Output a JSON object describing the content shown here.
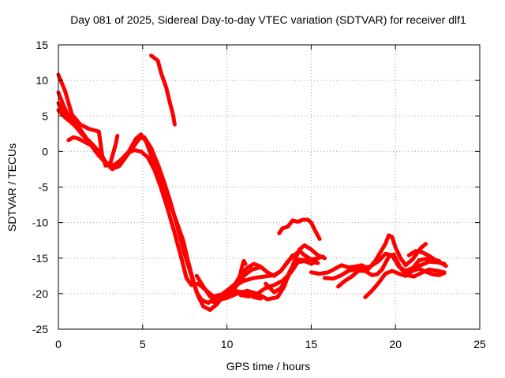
{
  "chart_data": {
    "type": "line",
    "title": "Day 081 of 2025, Sidereal Day-to-day VTEC variation (SDTVAR) for receiver dlf1",
    "xlabel": "GPS time / hours",
    "ylabel": "SDTVAR / TECUs",
    "xlim": [
      0,
      25
    ],
    "ylim": [
      -25,
      15
    ],
    "xticks": [
      0,
      5,
      10,
      15,
      20,
      25
    ],
    "yticks": [
      -25,
      -20,
      -15,
      -10,
      -5,
      0,
      5,
      10,
      15
    ],
    "xtick_labels": [
      "0",
      "5",
      "10",
      "15",
      "20",
      "25"
    ],
    "ytick_labels": [
      "-25",
      "-20",
      "-15",
      "-10",
      "-5",
      "0",
      "5",
      "10",
      "15"
    ],
    "grid": true,
    "color": "#ff0000",
    "series": [
      {
        "name": "track-1",
        "points": [
          [
            0.0,
            10.8
          ],
          [
            0.4,
            8.5
          ],
          [
            0.8,
            5.2
          ],
          [
            1.3,
            3.8
          ],
          [
            1.8,
            3.2
          ],
          [
            2.4,
            2.8
          ],
          [
            2.6,
            -0.5
          ],
          [
            2.8,
            -2.0
          ],
          [
            3.1,
            -1.5
          ],
          [
            3.4,
            1.0
          ],
          [
            3.5,
            2.2
          ]
        ]
      },
      {
        "name": "track-2",
        "points": [
          [
            0.0,
            8.3
          ],
          [
            0.3,
            6.5
          ],
          [
            0.6,
            5.0
          ],
          [
            1.0,
            3.6
          ],
          [
            1.4,
            2.4
          ],
          [
            1.9,
            1.3
          ],
          [
            2.4,
            0.0
          ],
          [
            2.9,
            -1.8
          ],
          [
            3.2,
            -2.5
          ],
          [
            3.6,
            -1.6
          ],
          [
            4.1,
            -0.3
          ],
          [
            4.6,
            1.8
          ],
          [
            4.9,
            2.4
          ],
          [
            5.2,
            1.4
          ],
          [
            5.5,
            -0.5
          ],
          [
            5.8,
            -2.5
          ],
          [
            6.2,
            -4.8
          ],
          [
            6.6,
            -7.2
          ],
          [
            7.0,
            -9.8
          ],
          [
            7.4,
            -12.5
          ],
          [
            7.7,
            -15.5
          ],
          [
            8.0,
            -18.2
          ],
          [
            8.3,
            -20.4
          ],
          [
            8.6,
            -21.8
          ],
          [
            9.0,
            -22.3
          ],
          [
            9.4,
            -21.5
          ],
          [
            9.8,
            -20.3
          ],
          [
            10.2,
            -19.5
          ],
          [
            10.6,
            -18.8
          ],
          [
            11.0,
            -17.5
          ],
          [
            11.5,
            -16.6
          ],
          [
            12.0,
            -16.3
          ]
        ]
      },
      {
        "name": "track-3",
        "points": [
          [
            0.0,
            6.8
          ],
          [
            0.3,
            5.6
          ],
          [
            0.8,
            4.4
          ],
          [
            1.3,
            3.1
          ],
          [
            1.8,
            1.4
          ],
          [
            2.3,
            -0.2
          ],
          [
            2.8,
            -1.6
          ],
          [
            3.2,
            -2.4
          ],
          [
            3.6,
            -2.1
          ],
          [
            4.0,
            -0.8
          ],
          [
            4.4,
            0.5
          ],
          [
            4.8,
            1.8
          ],
          [
            5.1,
            2.0
          ],
          [
            5.5,
            0.5
          ],
          [
            5.9,
            -1.8
          ],
          [
            6.3,
            -4.5
          ],
          [
            6.7,
            -7.5
          ],
          [
            7.1,
            -11.0
          ],
          [
            7.5,
            -14.5
          ],
          [
            7.9,
            -17.5
          ],
          [
            8.2,
            -19.8
          ],
          [
            8.5,
            -20.9
          ],
          [
            8.9,
            -21.3
          ],
          [
            9.3,
            -20.6
          ],
          [
            9.8,
            -20.0
          ],
          [
            10.4,
            -19.6
          ],
          [
            11.0,
            -19.8
          ],
          [
            11.6,
            -20.5
          ],
          [
            12.0,
            -20.7
          ]
        ]
      },
      {
        "name": "track-4",
        "points": [
          [
            0.0,
            5.8
          ],
          [
            0.4,
            4.8
          ],
          [
            0.9,
            3.8
          ],
          [
            1.4,
            2.6
          ],
          [
            1.9,
            1.0
          ],
          [
            2.4,
            -0.6
          ],
          [
            2.9,
            -1.8
          ],
          [
            3.3,
            -1.9
          ],
          [
            3.7,
            -1.2
          ],
          [
            4.1,
            -0.2
          ],
          [
            4.5,
            0.2
          ],
          [
            4.9,
            0.0
          ],
          [
            5.3,
            -0.8
          ],
          [
            5.7,
            -2.6
          ],
          [
            6.1,
            -5.2
          ],
          [
            6.5,
            -8.2
          ],
          [
            6.9,
            -11.5
          ],
          [
            7.3,
            -15.0
          ],
          [
            7.6,
            -17.8
          ],
          [
            7.9,
            -18.8
          ],
          [
            8.3,
            -18.6
          ],
          [
            8.7,
            -19.4
          ],
          [
            9.2,
            -20.4
          ],
          [
            9.7,
            -20.1
          ],
          [
            10.2,
            -19.2
          ],
          [
            10.6,
            -18.4
          ],
          [
            11.0,
            -18.0
          ]
        ]
      },
      {
        "name": "track-5",
        "points": [
          [
            0.6,
            1.6
          ],
          [
            0.9,
            2.0
          ],
          [
            1.2,
            1.8
          ],
          [
            1.6,
            1.3
          ],
          [
            2.0,
            0.8
          ]
        ]
      },
      {
        "name": "track-6",
        "points": [
          [
            5.5,
            13.5
          ],
          [
            5.9,
            12.8
          ],
          [
            6.1,
            11.0
          ],
          [
            6.4,
            9.0
          ],
          [
            6.6,
            7.0
          ],
          [
            6.8,
            5.2
          ],
          [
            6.9,
            3.8
          ]
        ]
      },
      {
        "name": "track-7",
        "points": [
          [
            8.2,
            -17.5
          ],
          [
            8.6,
            -19.0
          ],
          [
            9.0,
            -20.4
          ],
          [
            9.5,
            -20.9
          ],
          [
            10.0,
            -20.6
          ],
          [
            10.6,
            -20.0
          ],
          [
            11.2,
            -19.6
          ],
          [
            11.8,
            -20.0
          ],
          [
            12.4,
            -20.8
          ],
          [
            13.0,
            -20.5
          ],
          [
            13.4,
            -19.0
          ],
          [
            13.7,
            -17.0
          ],
          [
            14.0,
            -15.8
          ],
          [
            14.3,
            -15.2
          ],
          [
            14.6,
            -15.3
          ],
          [
            15.0,
            -15.5
          ],
          [
            15.4,
            -15.7
          ]
        ]
      },
      {
        "name": "track-8",
        "points": [
          [
            10.4,
            -19.0
          ],
          [
            11.0,
            -18.2
          ],
          [
            11.6,
            -17.8
          ],
          [
            12.2,
            -17.6
          ],
          [
            12.8,
            -17.4
          ],
          [
            13.2,
            -16.8
          ],
          [
            13.6,
            -15.5
          ],
          [
            14.0,
            -14.6
          ],
          [
            14.3,
            -14.0
          ],
          [
            14.6,
            -14.6
          ],
          [
            15.0,
            -15.2
          ],
          [
            15.4,
            -15.0
          ],
          [
            15.7,
            -14.8
          ]
        ]
      },
      {
        "name": "track-9",
        "points": [
          [
            10.8,
            -20.2
          ],
          [
            11.3,
            -20.4
          ],
          [
            11.8,
            -20.0
          ],
          [
            12.3,
            -19.2
          ],
          [
            12.8,
            -18.8
          ],
          [
            13.3,
            -18.2
          ],
          [
            13.8,
            -17.0
          ],
          [
            14.2,
            -15.6
          ],
          [
            14.6,
            -15.4
          ],
          [
            15.0,
            -15.8
          ],
          [
            15.3,
            -15.5
          ]
        ]
      },
      {
        "name": "track-10",
        "points": [
          [
            12.3,
            -18.6
          ],
          [
            12.8,
            -19.8
          ],
          [
            13.2,
            -19.2
          ],
          [
            13.6,
            -17.8
          ],
          [
            14.0,
            -15.5
          ],
          [
            14.3,
            -13.8
          ],
          [
            14.6,
            -13.2
          ],
          [
            15.0,
            -13.8
          ],
          [
            15.4,
            -14.6
          ],
          [
            15.8,
            -15.0
          ]
        ]
      },
      {
        "name": "track-11",
        "points": [
          [
            10.4,
            -19.0
          ],
          [
            10.8,
            -17.4
          ],
          [
            11.2,
            -16.4
          ],
          [
            11.6,
            -15.8
          ],
          [
            12.0,
            -16.2
          ],
          [
            12.4,
            -17.0
          ],
          [
            12.8,
            -17.5
          ],
          [
            13.2,
            -16.8
          ],
          [
            13.6,
            -15.6
          ],
          [
            13.9,
            -14.6
          ]
        ]
      },
      {
        "name": "track-12",
        "points": [
          [
            9.2,
            -21.2
          ],
          [
            9.6,
            -20.7
          ],
          [
            10.0,
            -20.4
          ],
          [
            10.4,
            -19.6
          ],
          [
            10.7,
            -18.2
          ],
          [
            10.9,
            -16.2
          ],
          [
            11.0,
            -15.4
          ],
          [
            11.1,
            -15.8
          ]
        ]
      },
      {
        "name": "track-13",
        "points": [
          [
            13.1,
            -11.5
          ],
          [
            13.3,
            -10.8
          ],
          [
            13.6,
            -10.6
          ],
          [
            13.9,
            -9.7
          ],
          [
            14.2,
            -9.9
          ],
          [
            14.5,
            -9.6
          ],
          [
            14.8,
            -9.6
          ],
          [
            15.0,
            -10.0
          ],
          [
            15.2,
            -11.0
          ],
          [
            15.5,
            -12.3
          ]
        ]
      },
      {
        "name": "track-14",
        "points": [
          [
            15.0,
            -17.0
          ],
          [
            15.5,
            -17.2
          ],
          [
            16.0,
            -17.0
          ],
          [
            16.4,
            -16.5
          ],
          [
            16.8,
            -16.0
          ],
          [
            17.2,
            -16.3
          ],
          [
            17.6,
            -16.2
          ],
          [
            18.0,
            -16.0
          ],
          [
            18.4,
            -16.5
          ],
          [
            18.8,
            -15.4
          ],
          [
            19.1,
            -14.2
          ],
          [
            19.4,
            -13.0
          ],
          [
            19.6,
            -11.8
          ],
          [
            19.8,
            -12.0
          ],
          [
            20.0,
            -13.5
          ],
          [
            20.3,
            -15.0
          ],
          [
            20.6,
            -16.0
          ],
          [
            21.0,
            -15.2
          ],
          [
            21.5,
            -13.6
          ],
          [
            21.8,
            -13.0
          ]
        ]
      },
      {
        "name": "track-15",
        "points": [
          [
            15.8,
            -17.8
          ],
          [
            16.3,
            -17.9
          ],
          [
            16.8,
            -17.4
          ],
          [
            17.2,
            -16.8
          ],
          [
            17.6,
            -16.6
          ],
          [
            18.0,
            -16.4
          ],
          [
            18.5,
            -16.2
          ],
          [
            19.0,
            -15.4
          ],
          [
            19.4,
            -14.4
          ],
          [
            19.8,
            -14.6
          ],
          [
            20.2,
            -16.2
          ],
          [
            20.6,
            -16.8
          ],
          [
            21.0,
            -16.4
          ],
          [
            21.5,
            -16.0
          ],
          [
            22.0,
            -15.5
          ],
          [
            22.5,
            -15.6
          ],
          [
            22.9,
            -15.8
          ]
        ]
      },
      {
        "name": "track-16",
        "points": [
          [
            16.6,
            -19.0
          ],
          [
            17.0,
            -18.2
          ],
          [
            17.4,
            -17.6
          ],
          [
            17.8,
            -16.8
          ],
          [
            18.2,
            -16.8
          ],
          [
            18.6,
            -17.4
          ],
          [
            18.9,
            -17.3
          ],
          [
            19.2,
            -16.6
          ],
          [
            19.6,
            -14.8
          ],
          [
            19.9,
            -14.5
          ],
          [
            20.3,
            -16.4
          ],
          [
            20.7,
            -17.4
          ],
          [
            21.1,
            -17.6
          ],
          [
            21.6,
            -17.0
          ],
          [
            22.0,
            -16.6
          ],
          [
            22.5,
            -16.8
          ],
          [
            22.9,
            -17.0
          ]
        ]
      },
      {
        "name": "track-17",
        "points": [
          [
            18.2,
            -20.5
          ],
          [
            18.6,
            -19.6
          ],
          [
            19.0,
            -18.5
          ],
          [
            19.4,
            -17.2
          ],
          [
            19.8,
            -16.8
          ],
          [
            20.2,
            -17.2
          ],
          [
            20.6,
            -17.5
          ],
          [
            21.0,
            -16.5
          ],
          [
            21.4,
            -15.3
          ],
          [
            21.8,
            -15.1
          ],
          [
            22.2,
            -15.3
          ],
          [
            22.6,
            -15.4
          ]
        ]
      },
      {
        "name": "track-18",
        "points": [
          [
            20.6,
            -17.5
          ],
          [
            21.0,
            -16.8
          ],
          [
            21.4,
            -16.5
          ],
          [
            21.8,
            -16.9
          ],
          [
            22.2,
            -17.3
          ],
          [
            22.6,
            -17.4
          ],
          [
            22.9,
            -17.1
          ]
        ]
      },
      {
        "name": "track-19",
        "points": [
          [
            20.8,
            -14.6
          ],
          [
            21.2,
            -14.0
          ],
          [
            21.6,
            -14.2
          ],
          [
            22.0,
            -14.7
          ],
          [
            22.4,
            -15.3
          ],
          [
            22.8,
            -15.8
          ],
          [
            23.0,
            -16.1
          ]
        ]
      }
    ]
  }
}
